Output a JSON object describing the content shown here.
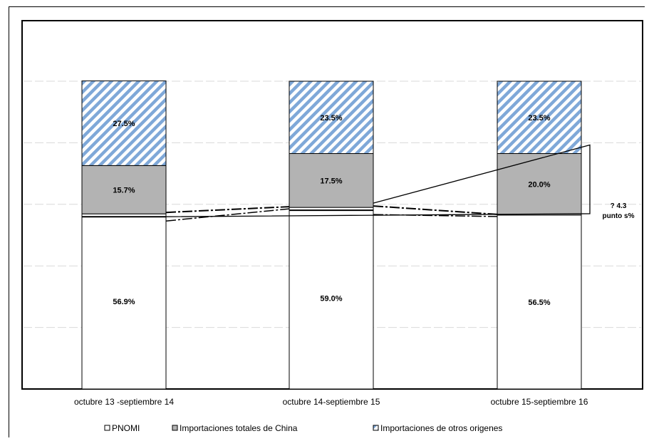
{
  "chart_data": {
    "type": "bar",
    "stacked": true,
    "categories": [
      "octubre 13 -septiembre 14",
      "octubre 14-septiembre 15",
      "octubre 15-septiembre 16"
    ],
    "series": [
      {
        "name": "PNOMI",
        "values": [
          56.9,
          59.0,
          56.5
        ],
        "labels": [
          "56.9%",
          "59.0%",
          "56.5%"
        ],
        "color": "#ffffff",
        "pattern": "none"
      },
      {
        "name": "Importaciones totales de China",
        "values": [
          15.7,
          17.5,
          20.0
        ],
        "labels": [
          "15.7%",
          "17.5%",
          "20.0%"
        ],
        "color": "#b3b3b3",
        "pattern": "none"
      },
      {
        "name": "Importaciones de otros origenes",
        "values": [
          27.5,
          23.5,
          23.5
        ],
        "labels": [
          "27.5%",
          "23.5%",
          "23.5%"
        ],
        "color": "#7fa8d8",
        "pattern": "diagonal-stripes"
      }
    ],
    "ylim": [
      0,
      100
    ],
    "grid": true,
    "legend_position": "bottom",
    "annotation": {
      "lines": [
        "? 4.3",
        "punto s%"
      ]
    }
  }
}
